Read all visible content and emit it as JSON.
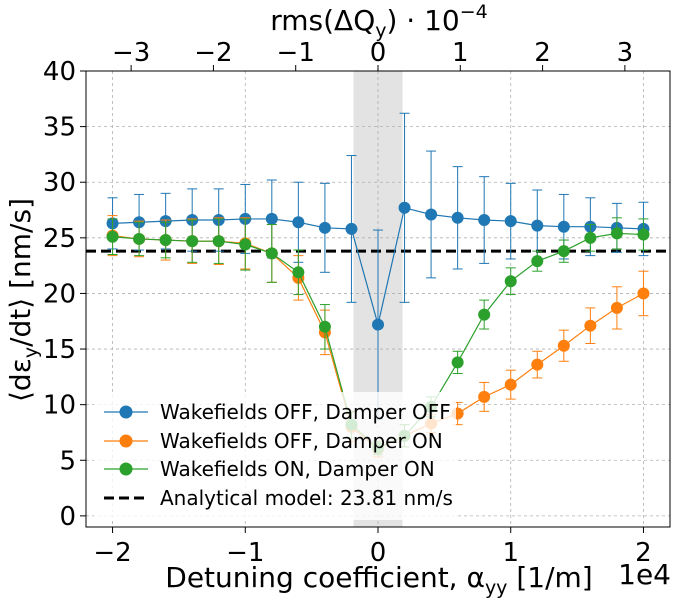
{
  "chart_data": {
    "type": "line",
    "xlabel": "Detuning coefficient, α",
    "xlabel_sub": "yy",
    "xlabel_unit": " [1/m]",
    "x_offset_text": "1e4",
    "ylabel_pre": "⟨dε",
    "ylabel_sub": "y",
    "ylabel_post": "/dt⟩ [nm/s]",
    "top_xlabel_pre": "rms(ΔQ",
    "top_xlabel_sub": "y",
    "top_xlabel_post": ") · 10",
    "top_xlabel_exp": "−4",
    "xlim": [
      -2.2,
      2.2
    ],
    "ylim": [
      -1,
      40
    ],
    "x_ticks": [
      -2,
      -1,
      0,
      1,
      2
    ],
    "x_tick_labels": [
      "−2",
      "−1",
      "0",
      "1",
      "2"
    ],
    "y_ticks": [
      0,
      5,
      10,
      15,
      20,
      25,
      30,
      35,
      40
    ],
    "y_tick_labels": [
      "0",
      "5",
      "10",
      "15",
      "20",
      "25",
      "30",
      "35",
      "40"
    ],
    "top_ticks_at_x": [
      -1.86,
      -1.24,
      -0.62,
      0.0,
      0.62,
      1.24,
      1.86
    ],
    "top_tick_labels": [
      "−3",
      "−2",
      "−1",
      "0",
      "1",
      "2",
      "3"
    ],
    "grid": true,
    "legend_position": "lower-left",
    "shaded_region": {
      "x": [
        -0.185,
        0.185
      ],
      "color": "#e3e3e3"
    },
    "x": [
      -2.0,
      -1.8,
      -1.6,
      -1.4,
      -1.2,
      -1.0,
      -0.8,
      -0.6,
      -0.4,
      -0.2,
      0.0,
      0.2,
      0.4,
      0.6,
      0.8,
      1.0,
      1.2,
      1.4,
      1.6,
      1.8,
      2.0
    ],
    "series": [
      {
        "name": "Wakefields OFF, Damper OFF",
        "color": "#1f77b4",
        "values": [
          26.3,
          26.4,
          26.5,
          26.6,
          26.6,
          26.7,
          26.7,
          26.4,
          25.9,
          25.8,
          17.2,
          27.7,
          27.1,
          26.8,
          26.6,
          26.5,
          26.1,
          26.0,
          26.0,
          25.9,
          25.8
        ],
        "errors": [
          2.3,
          2.5,
          2.5,
          2.8,
          2.8,
          3.1,
          3.5,
          3.6,
          4.0,
          6.6,
          8.5,
          8.5,
          5.7,
          4.6,
          3.9,
          3.4,
          3.2,
          2.9,
          2.6,
          2.2,
          2.4
        ]
      },
      {
        "name": "Wakefields OFF, Damper ON",
        "color": "#ff7f0e",
        "values": [
          25.2,
          24.9,
          24.8,
          24.7,
          24.7,
          24.5,
          23.6,
          21.4,
          16.5,
          8.0,
          6.0,
          7.2,
          8.3,
          9.2,
          10.7,
          11.8,
          13.6,
          15.3,
          17.1,
          18.7,
          20.0
        ],
        "errors": [
          1.8,
          1.6,
          1.8,
          2.0,
          2.1,
          2.3,
          2.6,
          2.0,
          2.0,
          1.3,
          0.7,
          1.0,
          0.8,
          1.0,
          1.3,
          1.3,
          1.2,
          1.4,
          1.6,
          1.9,
          2.0
        ]
      },
      {
        "name": "Wakefields ON, Damper ON",
        "color": "#2ca02c",
        "values": [
          25.1,
          24.9,
          24.8,
          24.7,
          24.7,
          24.4,
          23.6,
          21.9,
          17.0,
          8.2,
          6.1,
          7.2,
          9.8,
          13.8,
          18.1,
          21.1,
          22.9,
          23.8,
          25.0,
          25.4,
          25.3
        ],
        "errors": [
          1.6,
          1.5,
          1.6,
          1.9,
          2.0,
          2.3,
          2.6,
          2.0,
          2.0,
          1.2,
          0.6,
          1.0,
          0.9,
          1.0,
          1.3,
          1.2,
          0.9,
          1.0,
          1.2,
          1.4,
          1.4
        ]
      }
    ],
    "reference_line": {
      "name": "Analytical model: 23.81 nm/s",
      "value": 23.81,
      "color": "#000000"
    }
  }
}
